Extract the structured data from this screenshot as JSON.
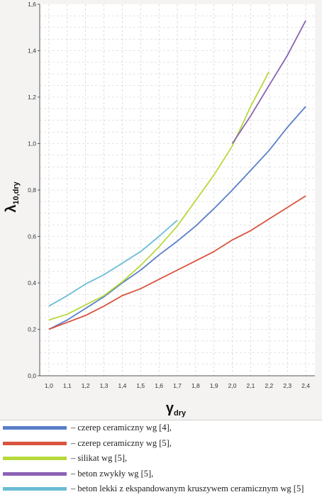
{
  "chart_data": {
    "type": "line",
    "xlabel_main": "γ",
    "xlabel_sub": "dry",
    "ylabel_main": "λ",
    "ylabel_sub": "10,dry",
    "xlim": [
      0.95,
      2.45
    ],
    "ylim": [
      0,
      1.6
    ],
    "xticks": [
      "1,0",
      "1,1",
      "1,2",
      "1,3",
      "1,4",
      "1,5",
      "1,6",
      "1,7",
      "1,8",
      "1,9",
      "2,0",
      "2,1",
      "2,2",
      "2,3",
      "2,4"
    ],
    "yticks": [
      "0,0",
      "0,2",
      "0,4",
      "0,6",
      "0,8",
      "1,0",
      "1,2",
      "1,4",
      "1,6"
    ],
    "series": [
      {
        "name": "– czerep ceramiczny wg [4],",
        "color": "#5b7fc7",
        "points": [
          [
            1.0,
            0.2
          ],
          [
            1.1,
            0.24
          ],
          [
            1.2,
            0.29
          ],
          [
            1.3,
            0.34
          ],
          [
            1.4,
            0.4
          ],
          [
            1.5,
            0.455
          ],
          [
            1.6,
            0.52
          ],
          [
            1.7,
            0.58
          ],
          [
            1.8,
            0.645
          ],
          [
            1.9,
            0.72
          ],
          [
            2.0,
            0.8
          ],
          [
            2.1,
            0.885
          ],
          [
            2.2,
            0.97
          ],
          [
            2.3,
            1.07
          ],
          [
            2.4,
            1.16
          ]
        ]
      },
      {
        "name": "– czerep ceramiczny wg [5],",
        "color": "#d9543f",
        "points": [
          [
            1.0,
            0.2
          ],
          [
            1.1,
            0.23
          ],
          [
            1.2,
            0.26
          ],
          [
            1.3,
            0.3
          ],
          [
            1.4,
            0.345
          ],
          [
            1.5,
            0.375
          ],
          [
            1.6,
            0.415
          ],
          [
            1.7,
            0.455
          ],
          [
            1.8,
            0.495
          ],
          [
            1.9,
            0.535
          ],
          [
            2.0,
            0.585
          ],
          [
            2.1,
            0.625
          ],
          [
            2.2,
            0.675
          ],
          [
            2.3,
            0.725
          ],
          [
            2.4,
            0.775
          ]
        ]
      },
      {
        "name": "– silikat wg [5],",
        "color": "#b7d93b",
        "points": [
          [
            1.0,
            0.24
          ],
          [
            1.1,
            0.265
          ],
          [
            1.2,
            0.305
          ],
          [
            1.3,
            0.345
          ],
          [
            1.4,
            0.405
          ],
          [
            1.5,
            0.475
          ],
          [
            1.6,
            0.555
          ],
          [
            1.7,
            0.645
          ],
          [
            1.8,
            0.755
          ],
          [
            1.9,
            0.865
          ],
          [
            2.0,
            0.99
          ],
          [
            2.1,
            1.16
          ],
          [
            2.2,
            1.31
          ]
        ]
      },
      {
        "name": "– beton zwykły wg [5],",
        "color": "#8a63b5",
        "points": [
          [
            2.0,
            1.0
          ],
          [
            2.1,
            1.12
          ],
          [
            2.2,
            1.25
          ],
          [
            2.3,
            1.38
          ],
          [
            2.4,
            1.53
          ]
        ]
      },
      {
        "name": "– beton lekki z ekspandowanym kruszywem ceramicznym wg [5]",
        "color": "#6bbcd6",
        "points": [
          [
            1.0,
            0.3
          ],
          [
            1.1,
            0.345
          ],
          [
            1.2,
            0.395
          ],
          [
            1.3,
            0.435
          ],
          [
            1.4,
            0.485
          ],
          [
            1.5,
            0.535
          ],
          [
            1.6,
            0.6
          ],
          [
            1.7,
            0.67
          ]
        ]
      }
    ]
  }
}
